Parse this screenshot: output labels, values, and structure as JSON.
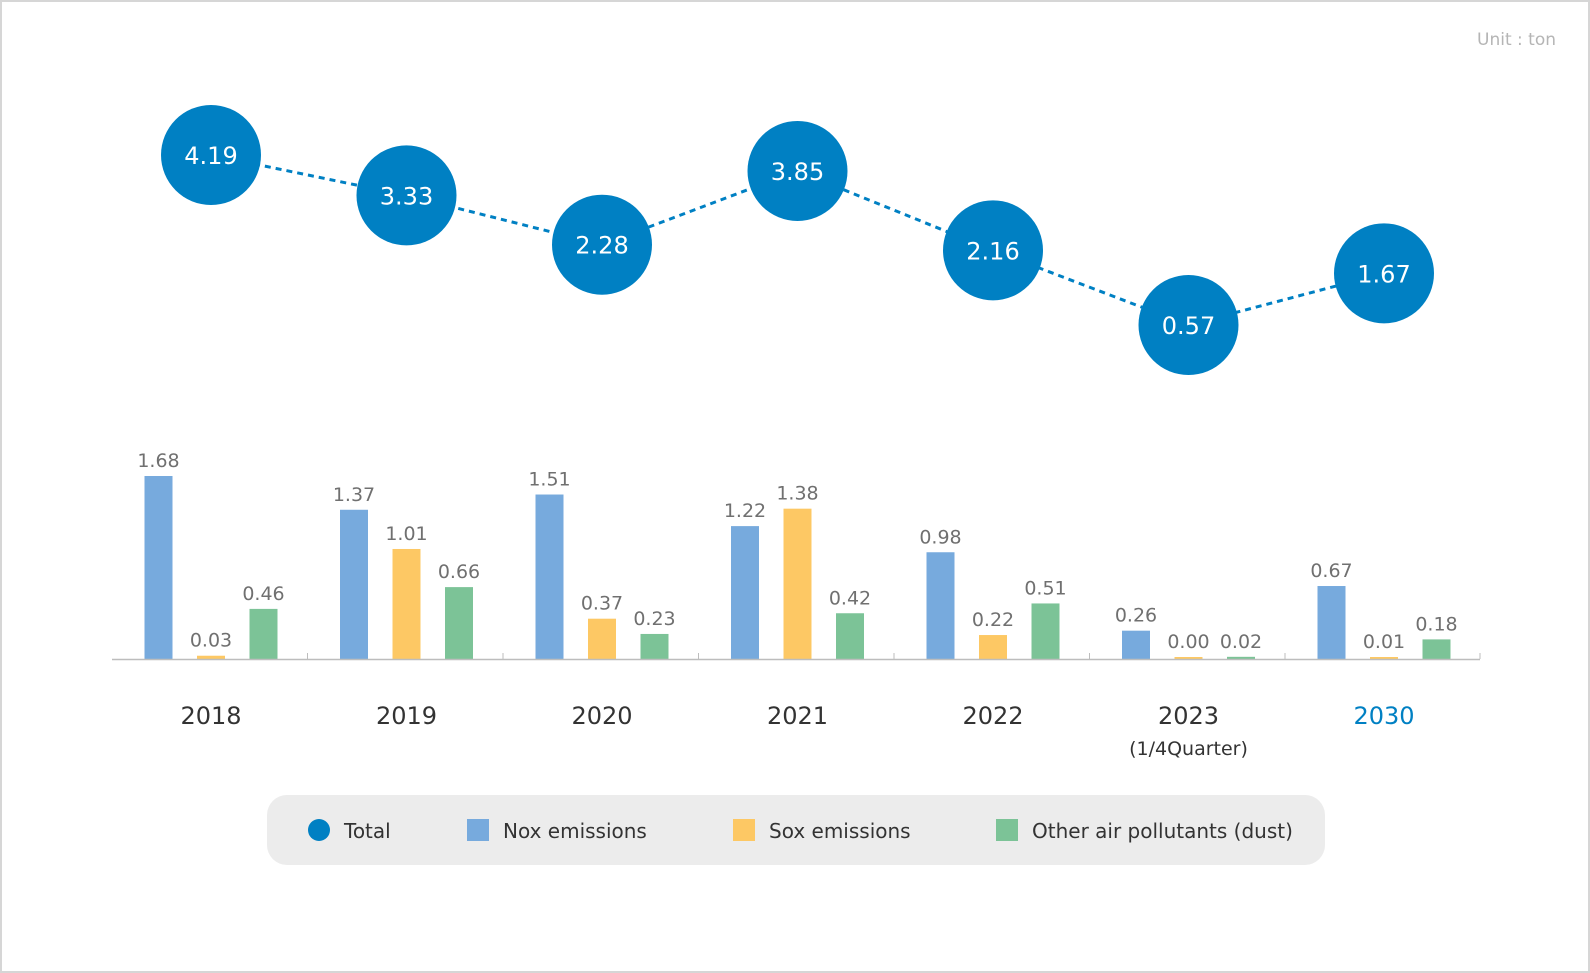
{
  "unit_label": "Unit : ton",
  "colors": {
    "total": "#0080c3",
    "nox": "#77aadd",
    "sox": "#fdc864",
    "other": "#7cc397",
    "highlight_year": "#0080c3",
    "legend_bg": "#ececec",
    "axis": "#bdbdbd"
  },
  "legend": [
    {
      "label": "Total",
      "key": "total",
      "shape": "circle"
    },
    {
      "label": "Nox emissions",
      "key": "nox",
      "shape": "square"
    },
    {
      "label": "Sox emissions",
      "key": "sox",
      "shape": "square"
    },
    {
      "label": "Other air pollutants (dust)",
      "key": "other",
      "shape": "square"
    }
  ],
  "chart_data": {
    "type": "bar",
    "categories": [
      "2018",
      "2019",
      "2020",
      "2021",
      "2022",
      "2023",
      "2030"
    ],
    "category_sublabels": [
      "",
      "",
      "",
      "",
      "",
      "(1/4Quarter)",
      ""
    ],
    "highlighted_category": "2030",
    "series": [
      {
        "name": "Nox emissions",
        "key": "nox",
        "values": [
          1.68,
          1.37,
          1.51,
          1.22,
          0.98,
          0.26,
          0.67
        ],
        "labels": [
          "1.68",
          "1.37",
          "1.51",
          "1.22",
          "0.98",
          "0.26",
          "0.67"
        ]
      },
      {
        "name": "Sox emissions",
        "key": "sox",
        "values": [
          0.03,
          1.01,
          0.37,
          1.38,
          0.22,
          0.0,
          0.01
        ],
        "labels": [
          "0.03",
          "1.01",
          "0.37",
          "1.38",
          "0.22",
          "0.00",
          "0.01"
        ]
      },
      {
        "name": "Other air pollutants (dust)",
        "key": "other",
        "values": [
          0.46,
          0.66,
          0.23,
          0.42,
          0.51,
          0.02,
          0.18
        ],
        "labels": [
          "0.46",
          "0.66",
          "0.23",
          "0.42",
          "0.51",
          "0.02",
          "0.18"
        ]
      }
    ],
    "total": {
      "name": "Total",
      "type": "line",
      "values": [
        4.19,
        3.33,
        2.28,
        3.85,
        2.16,
        0.57,
        1.67
      ],
      "labels": [
        "4.19",
        "3.33",
        "2.28",
        "3.85",
        "2.16",
        "0.57",
        "1.67"
      ]
    },
    "ylim": [
      0,
      1.8
    ],
    "legend_position": "bottom",
    "grid": false
  }
}
